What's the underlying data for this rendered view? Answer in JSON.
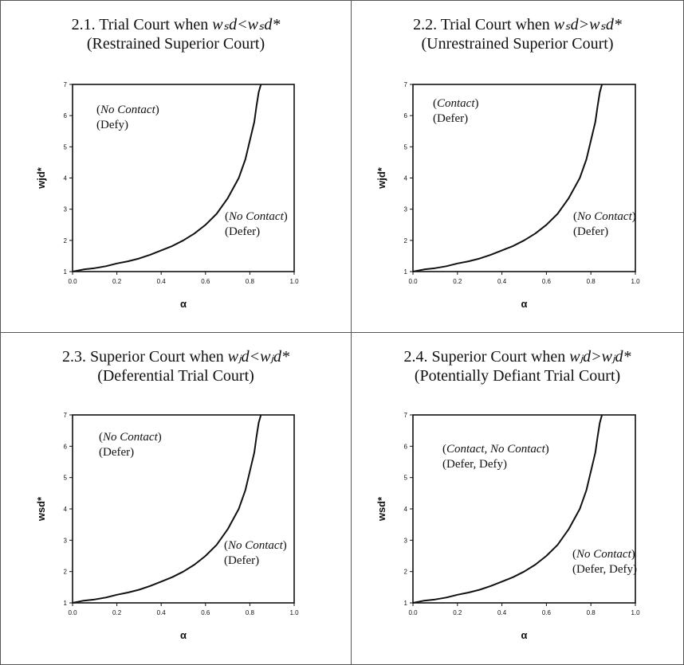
{
  "panels": [
    {
      "id": "2.1",
      "title_prefix": "2.1.  Trial Court when",
      "title_condition": "wₛd<wₛd*",
      "title_line2": "(Restrained Superior Court)",
      "upper_region": {
        "paren_open": "(",
        "italic": "No Contact",
        "paren_close": ")",
        "action": "(Defy)"
      },
      "lower_region": {
        "paren_open": "(",
        "italic": "No Contact",
        "paren_close": ")",
        "action": "(Defer)"
      }
    },
    {
      "id": "2.2",
      "title_prefix": "2.2. Trial Court when",
      "title_condition": "wₛd>wₛd*",
      "title_line2": "(Unrestrained Superior Court)",
      "upper_region": {
        "paren_open": "(",
        "italic": "Contact",
        "paren_close": ")",
        "action": "(Defer)"
      },
      "lower_region": {
        "paren_open": "(",
        "italic": "No Contact",
        "paren_close": ")",
        "action": "(Defer)"
      }
    },
    {
      "id": "2.3",
      "title_prefix": "2.3. Superior Court when",
      "title_condition": "wⱼd<wⱼd*",
      "title_line2": "(Deferential Trial Court)",
      "upper_region": {
        "paren_open": "(",
        "italic": "No Contact",
        "paren_close": ")",
        "action": "(Defer)"
      },
      "lower_region": {
        "paren_open": "(",
        "italic": "No Contact",
        "paren_close": ")",
        "action": "(Defer)"
      }
    },
    {
      "id": "2.4",
      "title_prefix": "2.4. Superior Court when",
      "title_condition": "wⱼd>wⱼd*",
      "title_line2": "(Potentially Defiant Trial Court)",
      "upper_region": {
        "paren_open": "(",
        "italic": "Contact, No Contact",
        "paren_close": ")",
        "action": "(Defer, Defy)"
      },
      "lower_region": {
        "paren_open": "(",
        "italic": "No Contact",
        "paren_close": ")",
        "action": "(Defer, Defy)"
      }
    }
  ],
  "chart_data": [
    {
      "type": "line",
      "xlabel": "α",
      "ylabel": "wjd*",
      "xlim": [
        0,
        1
      ],
      "ylim": [
        1,
        7
      ],
      "x_ticks": [
        "0.0",
        "0.2",
        "0.4",
        "0.6",
        "0.8",
        "1.0"
      ],
      "y_ticks": [
        "1",
        "2",
        "3",
        "4",
        "5",
        "6",
        "7"
      ],
      "grid": false,
      "series": [
        {
          "x": [
            0.0,
            0.05,
            0.1,
            0.15,
            0.2,
            0.25,
            0.3,
            0.35,
            0.4,
            0.45,
            0.5,
            0.55,
            0.6,
            0.65,
            0.7,
            0.75,
            0.78,
            0.8,
            0.82,
            0.83,
            0.84,
            0.85
          ],
          "y": [
            1.0,
            1.07,
            1.11,
            1.17,
            1.26,
            1.33,
            1.42,
            1.54,
            1.68,
            1.82,
            2.0,
            2.22,
            2.5,
            2.85,
            3.35,
            4.0,
            4.6,
            5.2,
            5.8,
            6.3,
            6.75,
            7.0
          ]
        }
      ]
    },
    {
      "type": "line",
      "xlabel": "α",
      "ylabel": "wjd*",
      "xlim": [
        0,
        1
      ],
      "ylim": [
        1,
        7
      ],
      "x_ticks": [
        "0.0",
        "0.2",
        "0.4",
        "0.6",
        "0.8",
        "1.0"
      ],
      "y_ticks": [
        "1",
        "2",
        "3",
        "4",
        "5",
        "6",
        "7"
      ],
      "grid": false,
      "series": [
        {
          "x": [
            0.0,
            0.05,
            0.1,
            0.15,
            0.2,
            0.25,
            0.3,
            0.35,
            0.4,
            0.45,
            0.5,
            0.55,
            0.6,
            0.65,
            0.7,
            0.75,
            0.78,
            0.8,
            0.82,
            0.83,
            0.84,
            0.85
          ],
          "y": [
            1.0,
            1.07,
            1.11,
            1.17,
            1.26,
            1.33,
            1.42,
            1.54,
            1.68,
            1.82,
            2.0,
            2.22,
            2.5,
            2.85,
            3.35,
            4.0,
            4.6,
            5.2,
            5.8,
            6.3,
            6.75,
            7.0
          ]
        }
      ]
    },
    {
      "type": "line",
      "xlabel": "α",
      "ylabel": "wsd*",
      "xlim": [
        0,
        1
      ],
      "ylim": [
        1,
        7
      ],
      "x_ticks": [
        "0.0",
        "0.2",
        "0.4",
        "0.6",
        "0.8",
        "1.0"
      ],
      "y_ticks": [
        "1",
        "2",
        "3",
        "4",
        "5",
        "6",
        "7"
      ],
      "grid": false,
      "series": [
        {
          "x": [
            0.0,
            0.05,
            0.1,
            0.15,
            0.2,
            0.25,
            0.3,
            0.35,
            0.4,
            0.45,
            0.5,
            0.55,
            0.6,
            0.65,
            0.7,
            0.75,
            0.78,
            0.8,
            0.82,
            0.83,
            0.84,
            0.85
          ],
          "y": [
            1.0,
            1.07,
            1.11,
            1.17,
            1.26,
            1.33,
            1.42,
            1.54,
            1.68,
            1.82,
            2.0,
            2.22,
            2.5,
            2.85,
            3.35,
            4.0,
            4.6,
            5.2,
            5.8,
            6.3,
            6.75,
            7.0
          ]
        }
      ]
    },
    {
      "type": "line",
      "xlabel": "α",
      "ylabel": "wsd*",
      "xlim": [
        0,
        1
      ],
      "ylim": [
        1,
        7
      ],
      "x_ticks": [
        "0.0",
        "0.2",
        "0.4",
        "0.6",
        "0.8",
        "1.0"
      ],
      "y_ticks": [
        "1",
        "2",
        "3",
        "4",
        "5",
        "6",
        "7"
      ],
      "grid": false,
      "series": [
        {
          "x": [
            0.0,
            0.05,
            0.1,
            0.15,
            0.2,
            0.25,
            0.3,
            0.35,
            0.4,
            0.45,
            0.5,
            0.55,
            0.6,
            0.65,
            0.7,
            0.75,
            0.78,
            0.8,
            0.82,
            0.83,
            0.84,
            0.85
          ],
          "y": [
            1.0,
            1.07,
            1.11,
            1.17,
            1.26,
            1.33,
            1.42,
            1.54,
            1.68,
            1.82,
            2.0,
            2.22,
            2.5,
            2.85,
            3.35,
            4.0,
            4.6,
            5.2,
            5.8,
            6.3,
            6.75,
            7.0
          ]
        }
      ]
    }
  ]
}
